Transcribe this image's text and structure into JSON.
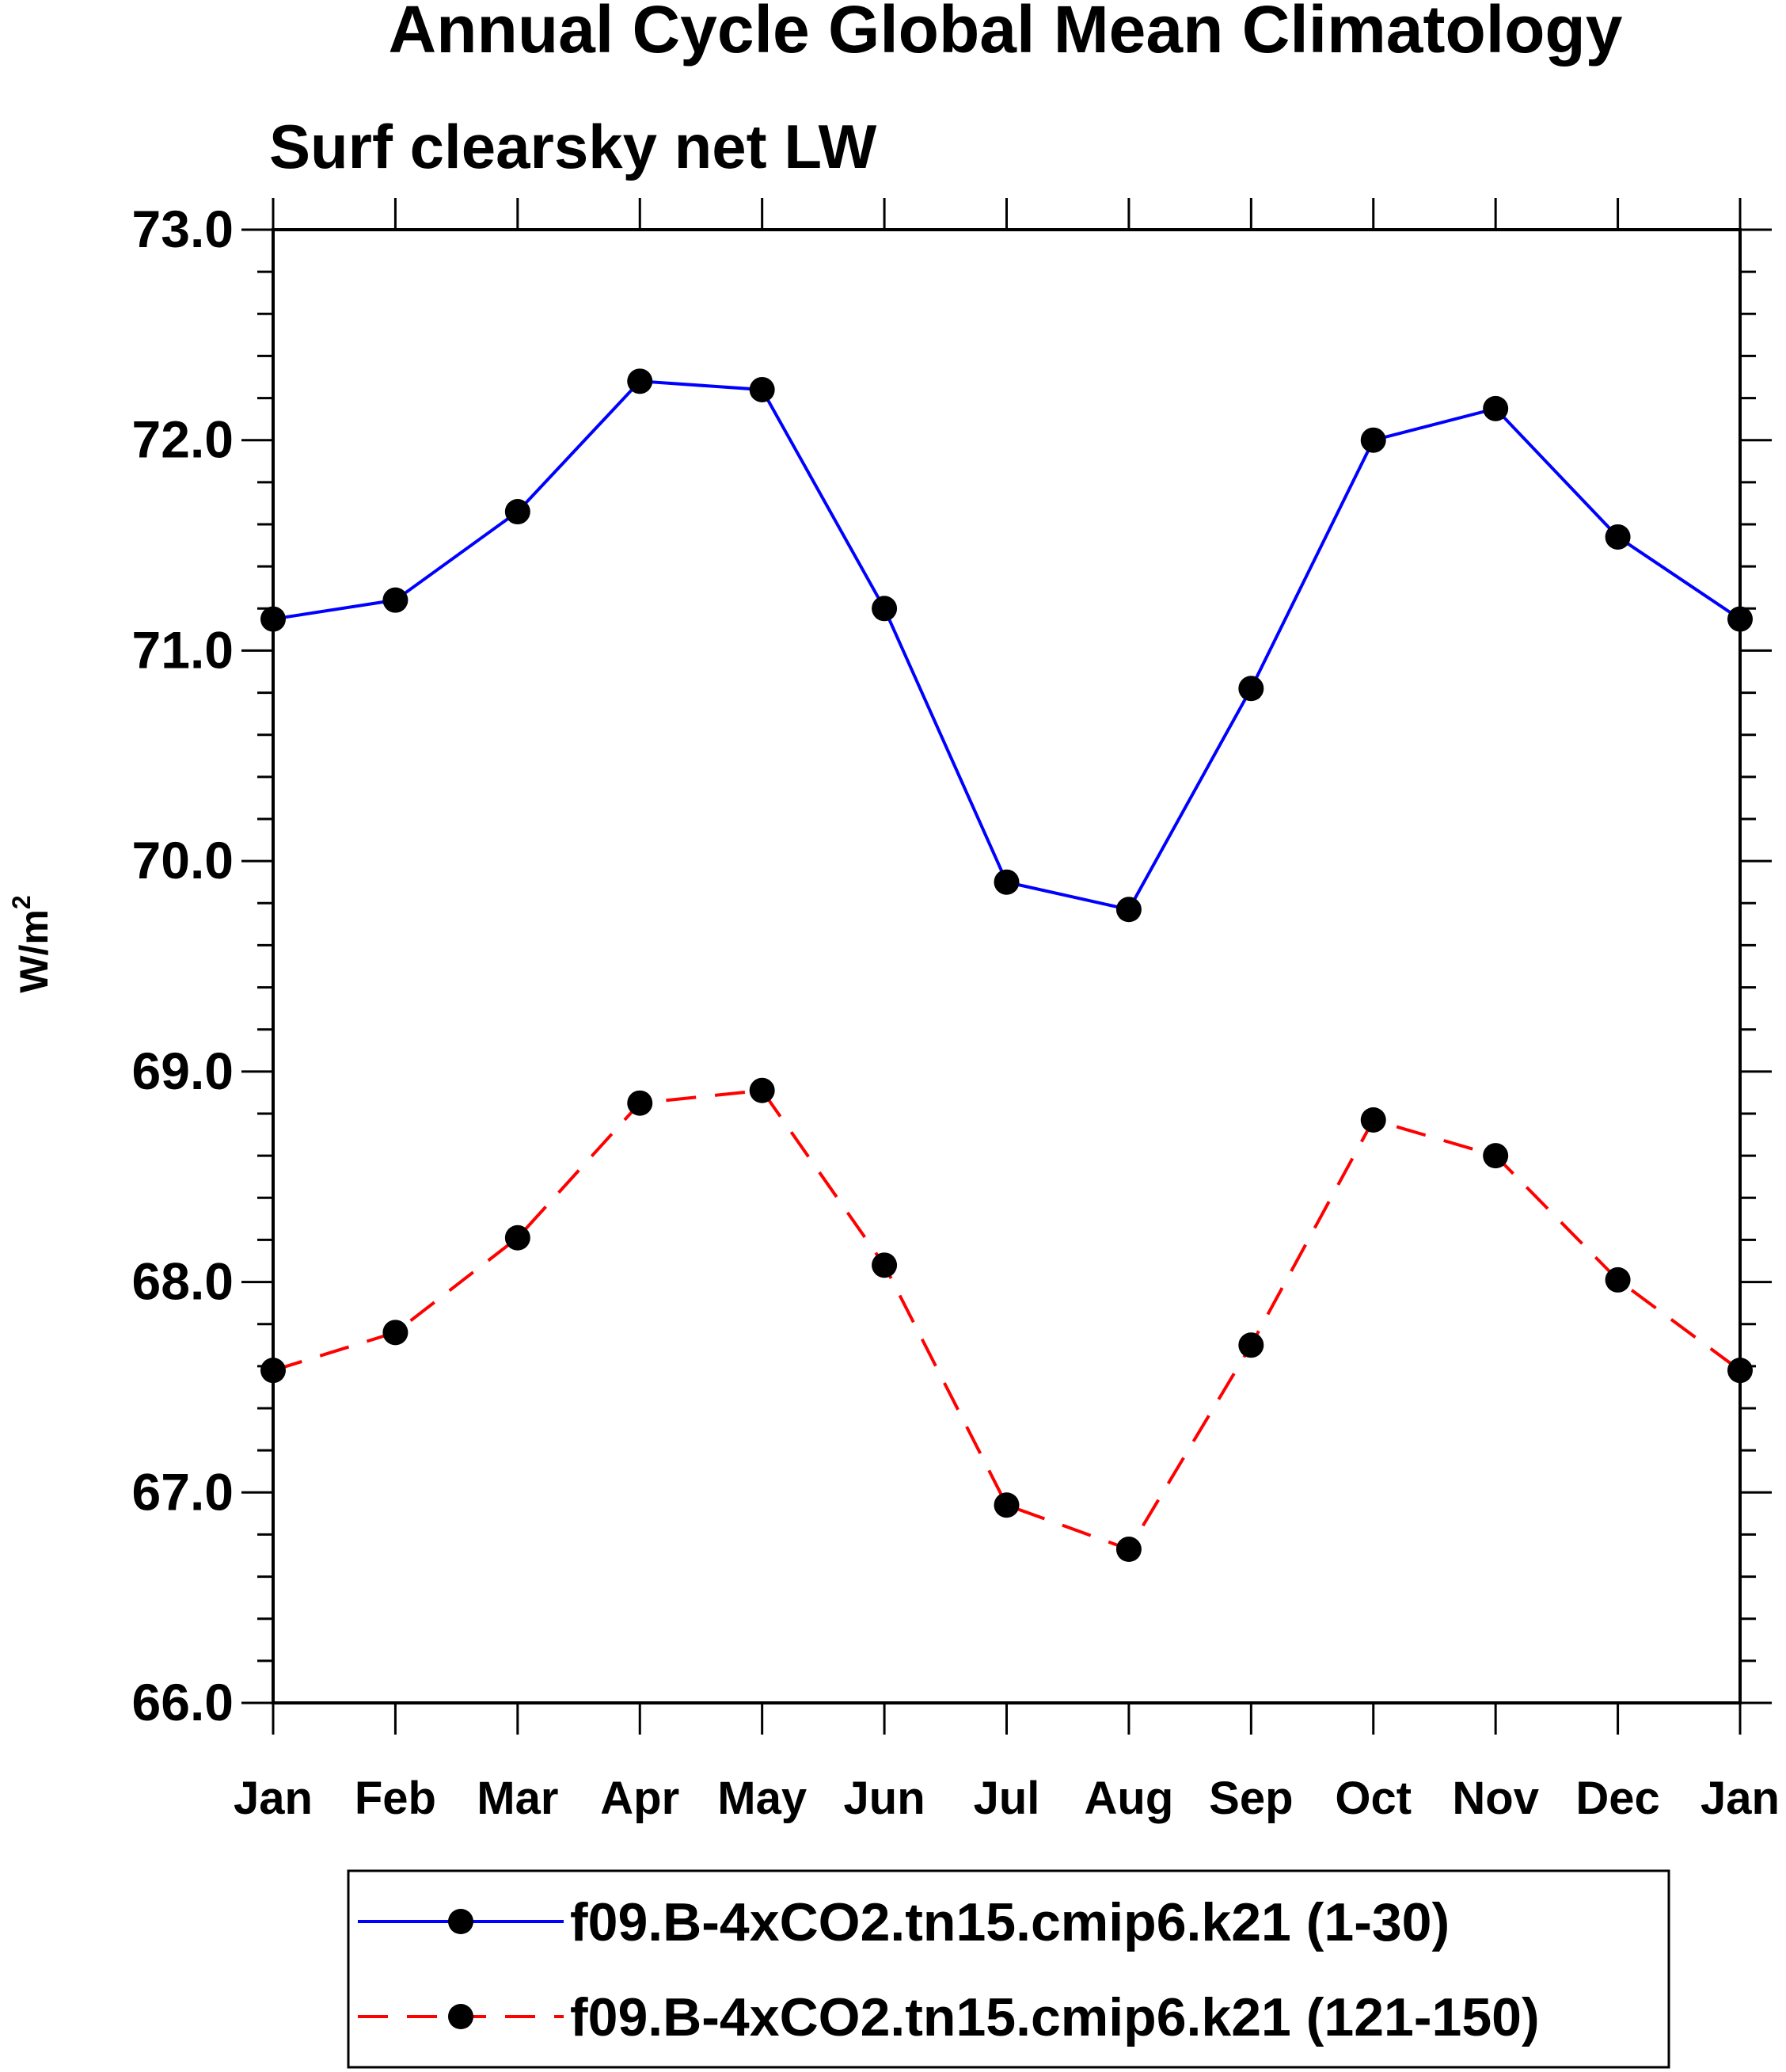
{
  "chart_data": {
    "type": "line",
    "title": "Annual Cycle Global Mean Climatology",
    "subtitle": "Surf clearsky net LW",
    "ylabel_base": "W/m",
    "ylabel_sup": "2",
    "xlabel": "",
    "categories": [
      "Jan",
      "Feb",
      "Mar",
      "Apr",
      "May",
      "Jun",
      "Jul",
      "Aug",
      "Sep",
      "Oct",
      "Nov",
      "Dec",
      "Jan"
    ],
    "ylim": [
      66.0,
      73.0
    ],
    "yticks": [
      "66.0",
      "67.0",
      "68.0",
      "69.0",
      "70.0",
      "71.0",
      "72.0",
      "73.0"
    ],
    "series": [
      {
        "name": "f09.B-4xCO2.tn15.cmip6.k21 (1-30)",
        "color": "#0000ff",
        "dash": "solid",
        "values": [
          71.15,
          71.24,
          71.66,
          72.28,
          72.24,
          71.2,
          69.9,
          69.77,
          70.82,
          72.0,
          72.15,
          71.54,
          71.15
        ]
      },
      {
        "name": "f09.B-4xCO2.tn15.cmip6.k21 (121-150)",
        "color": "#ff0000",
        "dash": "dashed",
        "values": [
          67.58,
          67.76,
          68.21,
          68.85,
          68.91,
          68.08,
          66.94,
          66.73,
          67.7,
          68.77,
          68.6,
          68.01,
          67.58
        ]
      }
    ],
    "marker_color": "#000000",
    "legend_position": "bottom"
  }
}
